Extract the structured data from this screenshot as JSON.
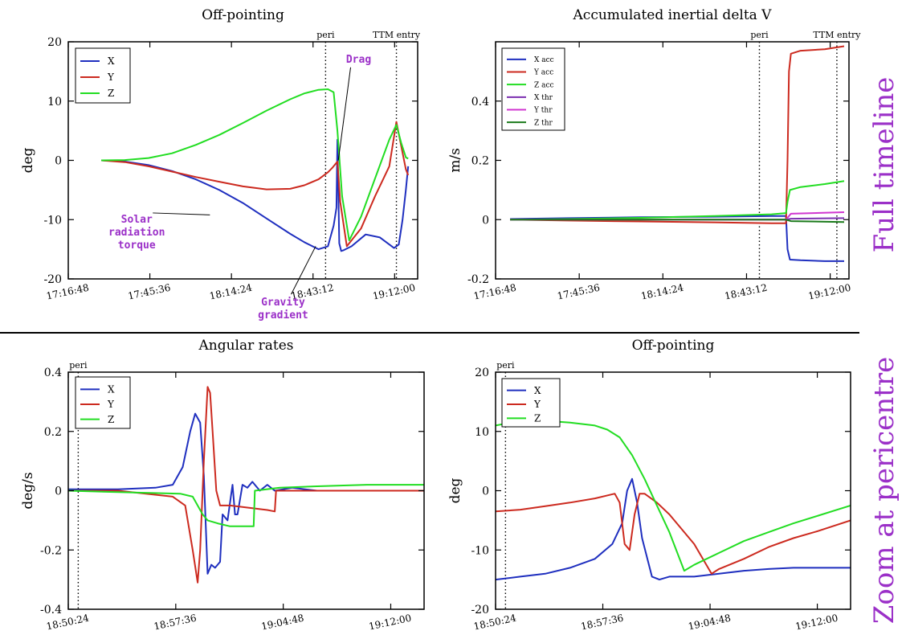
{
  "side_labels": {
    "top": "Full timeline",
    "bottom": "Zoom at pericentre"
  },
  "colors": {
    "X": "#1f2fbf",
    "Y": "#cc2a1f",
    "Z": "#22dd22",
    "Xthr": "#7b2fb0",
    "Ythr": "#d036d0",
    "Zthr": "#1a7a1a",
    "annotation": "#9b30c8"
  },
  "chart_data": [
    {
      "type": "line",
      "title": "Off-pointing",
      "ylabel": "deg",
      "xlabel": "",
      "xlim": [
        0,
        7400
      ],
      "ylim": [
        -20,
        20
      ],
      "yticks": [
        -20,
        -10,
        0,
        10,
        20
      ],
      "xticks": [
        0,
        1728,
        3456,
        5184,
        6912
      ],
      "xtick_labels": [
        "17:16:48",
        "17:45:36",
        "18:14:24",
        "18:43:12",
        "19:12:00"
      ],
      "vlines": [
        {
          "x": 5450,
          "label": "peri"
        },
        {
          "x": 6950,
          "label": "TTM entry"
        }
      ],
      "grid": false,
      "legend_position": "top-left",
      "annotations": [
        {
          "text": "Drag",
          "x": 6150,
          "y": 16.5,
          "line_to": [
            5720,
            0
          ]
        },
        {
          "text": "Solar\nradiation\ntorque",
          "x": 1450,
          "y": -10.5,
          "line_to": [
            3000,
            -9.2
          ]
        },
        {
          "text": "Gravity\ngradient",
          "x": 4550,
          "y": -24.5,
          "line_to": [
            5240,
            -14.5
          ]
        }
      ],
      "series": [
        {
          "name": "X",
          "color": "#1f2fbf",
          "x": [
            700,
            1200,
            1700,
            2200,
            2700,
            3200,
            3700,
            4200,
            4700,
            5000,
            5300,
            5500,
            5620,
            5680,
            5700,
            5740,
            5780,
            5820,
            6000,
            6300,
            6600,
            6900,
            7000,
            7080,
            7150,
            7200
          ],
          "y": [
            0,
            -0.2,
            -0.8,
            -1.8,
            -3.2,
            -5,
            -7.2,
            -9.8,
            -12.4,
            -13.8,
            -15,
            -14.5,
            -11,
            -8,
            3.5,
            -14,
            -15.3,
            -15.2,
            -14.5,
            -12.5,
            -13,
            -14.8,
            -14.2,
            -10,
            -5,
            -1
          ]
        },
        {
          "name": "Y",
          "color": "#cc2a1f",
          "x": [
            700,
            1200,
            1700,
            2200,
            2700,
            3200,
            3700,
            4200,
            4700,
            5000,
            5300,
            5500,
            5600,
            5700,
            5760,
            5900,
            6200,
            6500,
            6800,
            6950,
            7050,
            7150,
            7200
          ],
          "y": [
            0,
            -0.3,
            -1,
            -1.9,
            -2.8,
            -3.6,
            -4.4,
            -4.9,
            -4.8,
            -4.2,
            -3.2,
            -2,
            -1.2,
            -0.2,
            -7,
            -14.5,
            -11.5,
            -6,
            -1,
            6.5,
            2.5,
            -1.5,
            -2.5
          ]
        },
        {
          "name": "Z",
          "color": "#22dd22",
          "x": [
            700,
            1200,
            1700,
            2200,
            2700,
            3200,
            3700,
            4200,
            4700,
            5000,
            5300,
            5500,
            5620,
            5700,
            5800,
            5950,
            6200,
            6500,
            6800,
            6950,
            7050,
            7150,
            7200
          ],
          "y": [
            0,
            0.05,
            0.4,
            1.2,
            2.6,
            4.3,
            6.3,
            8.4,
            10.3,
            11.3,
            11.9,
            12,
            11.5,
            5,
            -6,
            -13.5,
            -9.5,
            -3,
            3.5,
            6,
            3,
            0.5,
            0.3
          ]
        }
      ]
    },
    {
      "type": "line",
      "title": "Accumulated inertial delta V",
      "ylabel": "m/s",
      "xlabel": "",
      "xlim": [
        0,
        7300
      ],
      "ylim": [
        -0.2,
        0.6
      ],
      "yticks": [
        -0.2,
        0,
        0.2,
        0.4
      ],
      "xticks": [
        0,
        1728,
        3456,
        5184,
        6912
      ],
      "xtick_labels": [
        "17:16:48",
        "17:45:36",
        "18:14:24",
        "18:43:12",
        "19:12:00"
      ],
      "vlines": [
        {
          "x": 5450,
          "label": "peri"
        },
        {
          "x": 7050,
          "label": "TTM entry"
        }
      ],
      "grid": false,
      "legend_position": "top-left",
      "series": [
        {
          "name": "X acc",
          "color": "#1f2fbf",
          "x": [
            300,
            1500,
            3000,
            4500,
            5700,
            6000,
            6030,
            6080,
            6300,
            6800,
            7200
          ],
          "y": [
            0.002,
            0.005,
            0.008,
            0.01,
            0.012,
            0.012,
            -0.1,
            -0.135,
            -0.137,
            -0.14,
            -0.14
          ]
        },
        {
          "name": "Y acc",
          "color": "#cc2a1f",
          "x": [
            300,
            1500,
            3000,
            4500,
            5700,
            6000,
            6030,
            6060,
            6100,
            6300,
            6800,
            7200
          ],
          "y": [
            0,
            -0.003,
            -0.006,
            -0.009,
            -0.012,
            -0.012,
            0.2,
            0.5,
            0.56,
            0.57,
            0.575,
            0.585
          ]
        },
        {
          "name": "Z acc",
          "color": "#22dd22",
          "x": [
            300,
            1500,
            3000,
            4500,
            5700,
            6000,
            6030,
            6080,
            6300,
            6800,
            7200
          ],
          "y": [
            0,
            0.002,
            0.006,
            0.012,
            0.018,
            0.022,
            0.06,
            0.1,
            0.11,
            0.12,
            0.13
          ]
        },
        {
          "name": "X thr",
          "color": "#7b2fb0",
          "x": [
            300,
            6000,
            6100,
            7200
          ],
          "y": [
            0,
            0,
            0.003,
            0.005
          ]
        },
        {
          "name": "Y thr",
          "color": "#d036d0",
          "x": [
            300,
            6000,
            6100,
            7200
          ],
          "y": [
            0,
            0,
            0.02,
            0.025
          ]
        },
        {
          "name": "Z thr",
          "color": "#1a7a1a",
          "x": [
            300,
            6000,
            6100,
            7200
          ],
          "y": [
            0,
            0,
            -0.005,
            -0.008
          ]
        }
      ]
    },
    {
      "type": "line",
      "title": "Angular rates",
      "ylabel": "deg/s",
      "xlabel": "",
      "xlim": [
        0,
        1430
      ],
      "ylim": [
        -0.4,
        0.4
      ],
      "yticks": [
        -0.4,
        -0.2,
        0,
        0.2,
        0.4
      ],
      "xticks": [
        0,
        432,
        864,
        1296
      ],
      "xtick_labels": [
        "18:50:24",
        "18:57:36",
        "19:04:48",
        "19:12:00"
      ],
      "vlines": [
        {
          "x": 40,
          "label": "peri"
        }
      ],
      "grid": false,
      "legend_position": "top-left",
      "series": [
        {
          "name": "X",
          "color": "#1f2fbf",
          "x": [
            0,
            200,
            350,
            420,
            460,
            490,
            510,
            530,
            545,
            560,
            575,
            590,
            610,
            620,
            640,
            660,
            670,
            680,
            700,
            720,
            740,
            770,
            800,
            830,
            900,
            1000,
            1200,
            1430
          ],
          "y": [
            0.005,
            0.005,
            0.01,
            0.02,
            0.08,
            0.2,
            0.26,
            0.23,
            0.05,
            -0.28,
            -0.25,
            -0.26,
            -0.24,
            -0.08,
            -0.1,
            0.02,
            -0.08,
            -0.08,
            0.02,
            0.01,
            0.03,
            0,
            0.02,
            0,
            0.01,
            0,
            0,
            0
          ]
        },
        {
          "name": "Y",
          "color": "#cc2a1f",
          "x": [
            0,
            200,
            420,
            470,
            500,
            520,
            530,
            545,
            560,
            570,
            580,
            595,
            610,
            650,
            700,
            800,
            830,
            835,
            1000,
            1430
          ],
          "y": [
            0,
            0,
            -0.02,
            -0.05,
            -0.2,
            -0.31,
            -0.2,
            0.1,
            0.35,
            0.33,
            0.2,
            0,
            -0.05,
            -0.05,
            -0.055,
            -0.065,
            -0.07,
            0,
            0,
            0
          ]
        },
        {
          "name": "Z",
          "color": "#22dd22",
          "x": [
            0,
            200,
            450,
            500,
            540,
            560,
            600,
            650,
            700,
            745,
            750,
            850,
            1000,
            1200,
            1430
          ],
          "y": [
            0,
            -0.005,
            -0.01,
            -0.02,
            -0.08,
            -0.1,
            -0.11,
            -0.12,
            -0.12,
            -0.12,
            0,
            0.01,
            0.015,
            0.02,
            0.02
          ]
        }
      ]
    },
    {
      "type": "line",
      "title": "Off-pointing",
      "ylabel": "deg",
      "xlabel": "",
      "xlim": [
        0,
        1430
      ],
      "ylim": [
        -20,
        20
      ],
      "yticks": [
        -20,
        -10,
        0,
        10,
        20
      ],
      "xticks": [
        0,
        432,
        864,
        1296
      ],
      "xtick_labels": [
        "18:50:24",
        "18:57:36",
        "19:04:48",
        "19:12:00"
      ],
      "vlines": [
        {
          "x": 40,
          "label": "peri"
        }
      ],
      "grid": false,
      "legend_position": "top-left",
      "series": [
        {
          "name": "X",
          "color": "#1f2fbf",
          "x": [
            0,
            100,
            200,
            300,
            400,
            470,
            510,
            530,
            550,
            570,
            590,
            630,
            660,
            700,
            750,
            800,
            900,
            1000,
            1100,
            1200,
            1430
          ],
          "y": [
            -15,
            -14.5,
            -14,
            -13,
            -11.5,
            -9,
            -5.5,
            0,
            2,
            -2,
            -8,
            -14.5,
            -15,
            -14.5,
            -14.5,
            -14.5,
            -14,
            -13.5,
            -13.2,
            -13,
            -13
          ]
        },
        {
          "name": "Y",
          "color": "#cc2a1f",
          "x": [
            0,
            100,
            200,
            300,
            400,
            460,
            480,
            500,
            520,
            540,
            560,
            580,
            600,
            650,
            700,
            800,
            870,
            900,
            1000,
            1100,
            1200,
            1300,
            1430
          ],
          "y": [
            -3.5,
            -3.2,
            -2.6,
            -2,
            -1.3,
            -0.7,
            -0.5,
            -2,
            -9,
            -10,
            -4,
            -0.5,
            -0.5,
            -2,
            -4,
            -9,
            -14,
            -13.2,
            -11.5,
            -9.5,
            -8,
            -6.8,
            -5
          ]
        },
        {
          "name": "Z",
          "color": "#22dd22",
          "x": [
            0,
            100,
            200,
            300,
            400,
            450,
            500,
            550,
            600,
            650,
            700,
            760,
            800,
            900,
            1000,
            1100,
            1200,
            1300,
            1430
          ],
          "y": [
            11,
            11.8,
            11.8,
            11.5,
            11,
            10.3,
            9,
            6,
            2,
            -2.5,
            -7,
            -13.5,
            -12.5,
            -10.5,
            -8.5,
            -7,
            -5.5,
            -4.2,
            -2.5
          ]
        }
      ]
    }
  ]
}
